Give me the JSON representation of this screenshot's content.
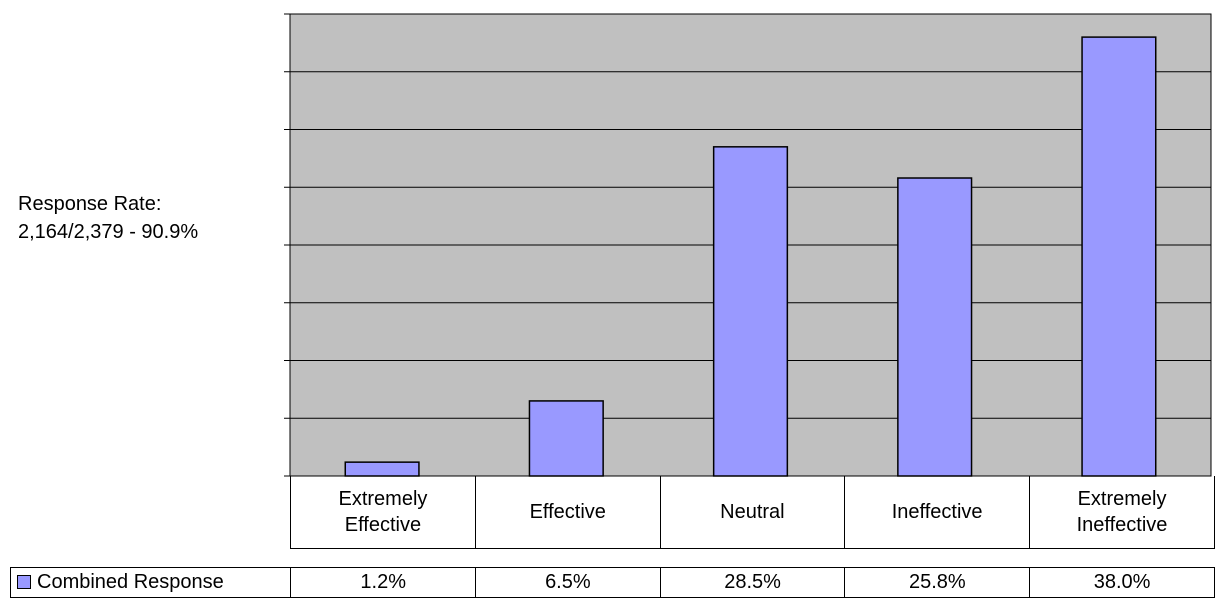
{
  "note": {
    "line1": "Response Rate:",
    "line2": "2,164/2,379 - 90.9%"
  },
  "colors": {
    "plot_background": "#c0c0c0",
    "bar_fill": "#9999ff",
    "bar_stroke": "#000000",
    "gridline": "#000000"
  },
  "chart_data": {
    "type": "bar",
    "categories": [
      [
        "Extremely",
        "Effective"
      ],
      [
        "Effective"
      ],
      [
        "Neutral"
      ],
      [
        "Ineffective"
      ],
      [
        "Extremely",
        "Ineffective"
      ]
    ],
    "series": [
      {
        "name": "Combined Response",
        "values": [
          1.2,
          6.5,
          28.5,
          25.8,
          38.0
        ],
        "labels": [
          "1.2%",
          "6.5%",
          "28.5%",
          "25.8%",
          "38.0%"
        ]
      }
    ],
    "ylim": [
      0,
      40
    ],
    "grid": true,
    "legend": "bottom-left, in data table"
  }
}
